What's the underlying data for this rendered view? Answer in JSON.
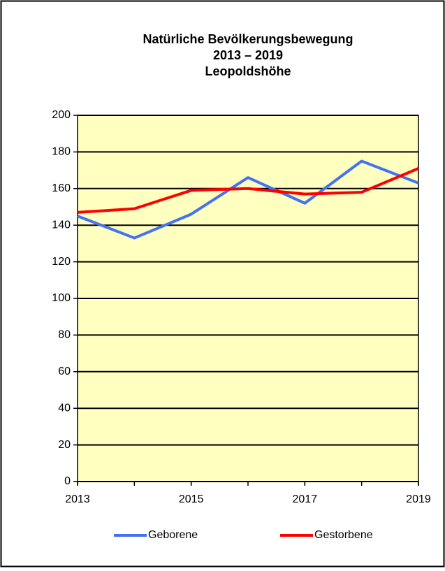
{
  "chart_data": {
    "type": "line",
    "title": [
      "Natürliche Bevölkerungsbewegung",
      "2013 – 2019",
      "Leopoldshöhe"
    ],
    "x": [
      2013,
      2014,
      2015,
      2016,
      2017,
      2018,
      2019
    ],
    "series": [
      {
        "name": "Geborene",
        "color": "#4472f4",
        "values": [
          145,
          133,
          146,
          166,
          152,
          175,
          163
        ]
      },
      {
        "name": "Gestorbene",
        "color": "#ff0000",
        "values": [
          147,
          149,
          159,
          160,
          157,
          158,
          171
        ]
      }
    ],
    "xlim": [
      2013,
      2019
    ],
    "xticks": [
      2013,
      2015,
      2017,
      2019
    ],
    "ylim": [
      0,
      200
    ],
    "yticks": [
      0,
      20,
      40,
      60,
      80,
      100,
      120,
      140,
      160,
      180,
      200
    ],
    "grid": true,
    "plot_background": "#ffffc0",
    "legend": "bottom"
  }
}
